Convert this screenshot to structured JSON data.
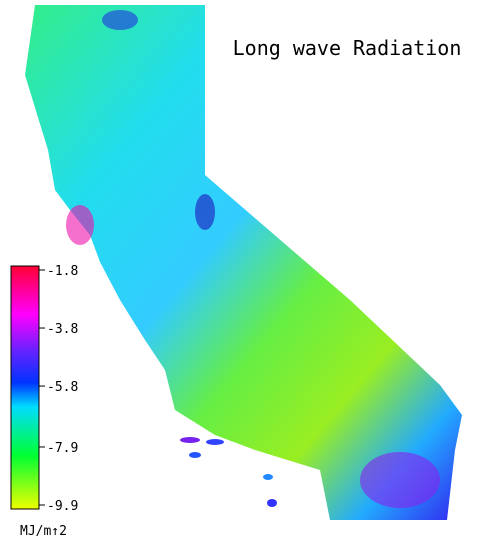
{
  "title": "Long wave Radiation",
  "colorbar": {
    "range": [
      -1.8,
      -9.9
    ],
    "ticks": [
      -1.8,
      -3.8,
      -5.8,
      -7.9,
      -9.9
    ],
    "unit": "MJ/m↑2"
  }
}
